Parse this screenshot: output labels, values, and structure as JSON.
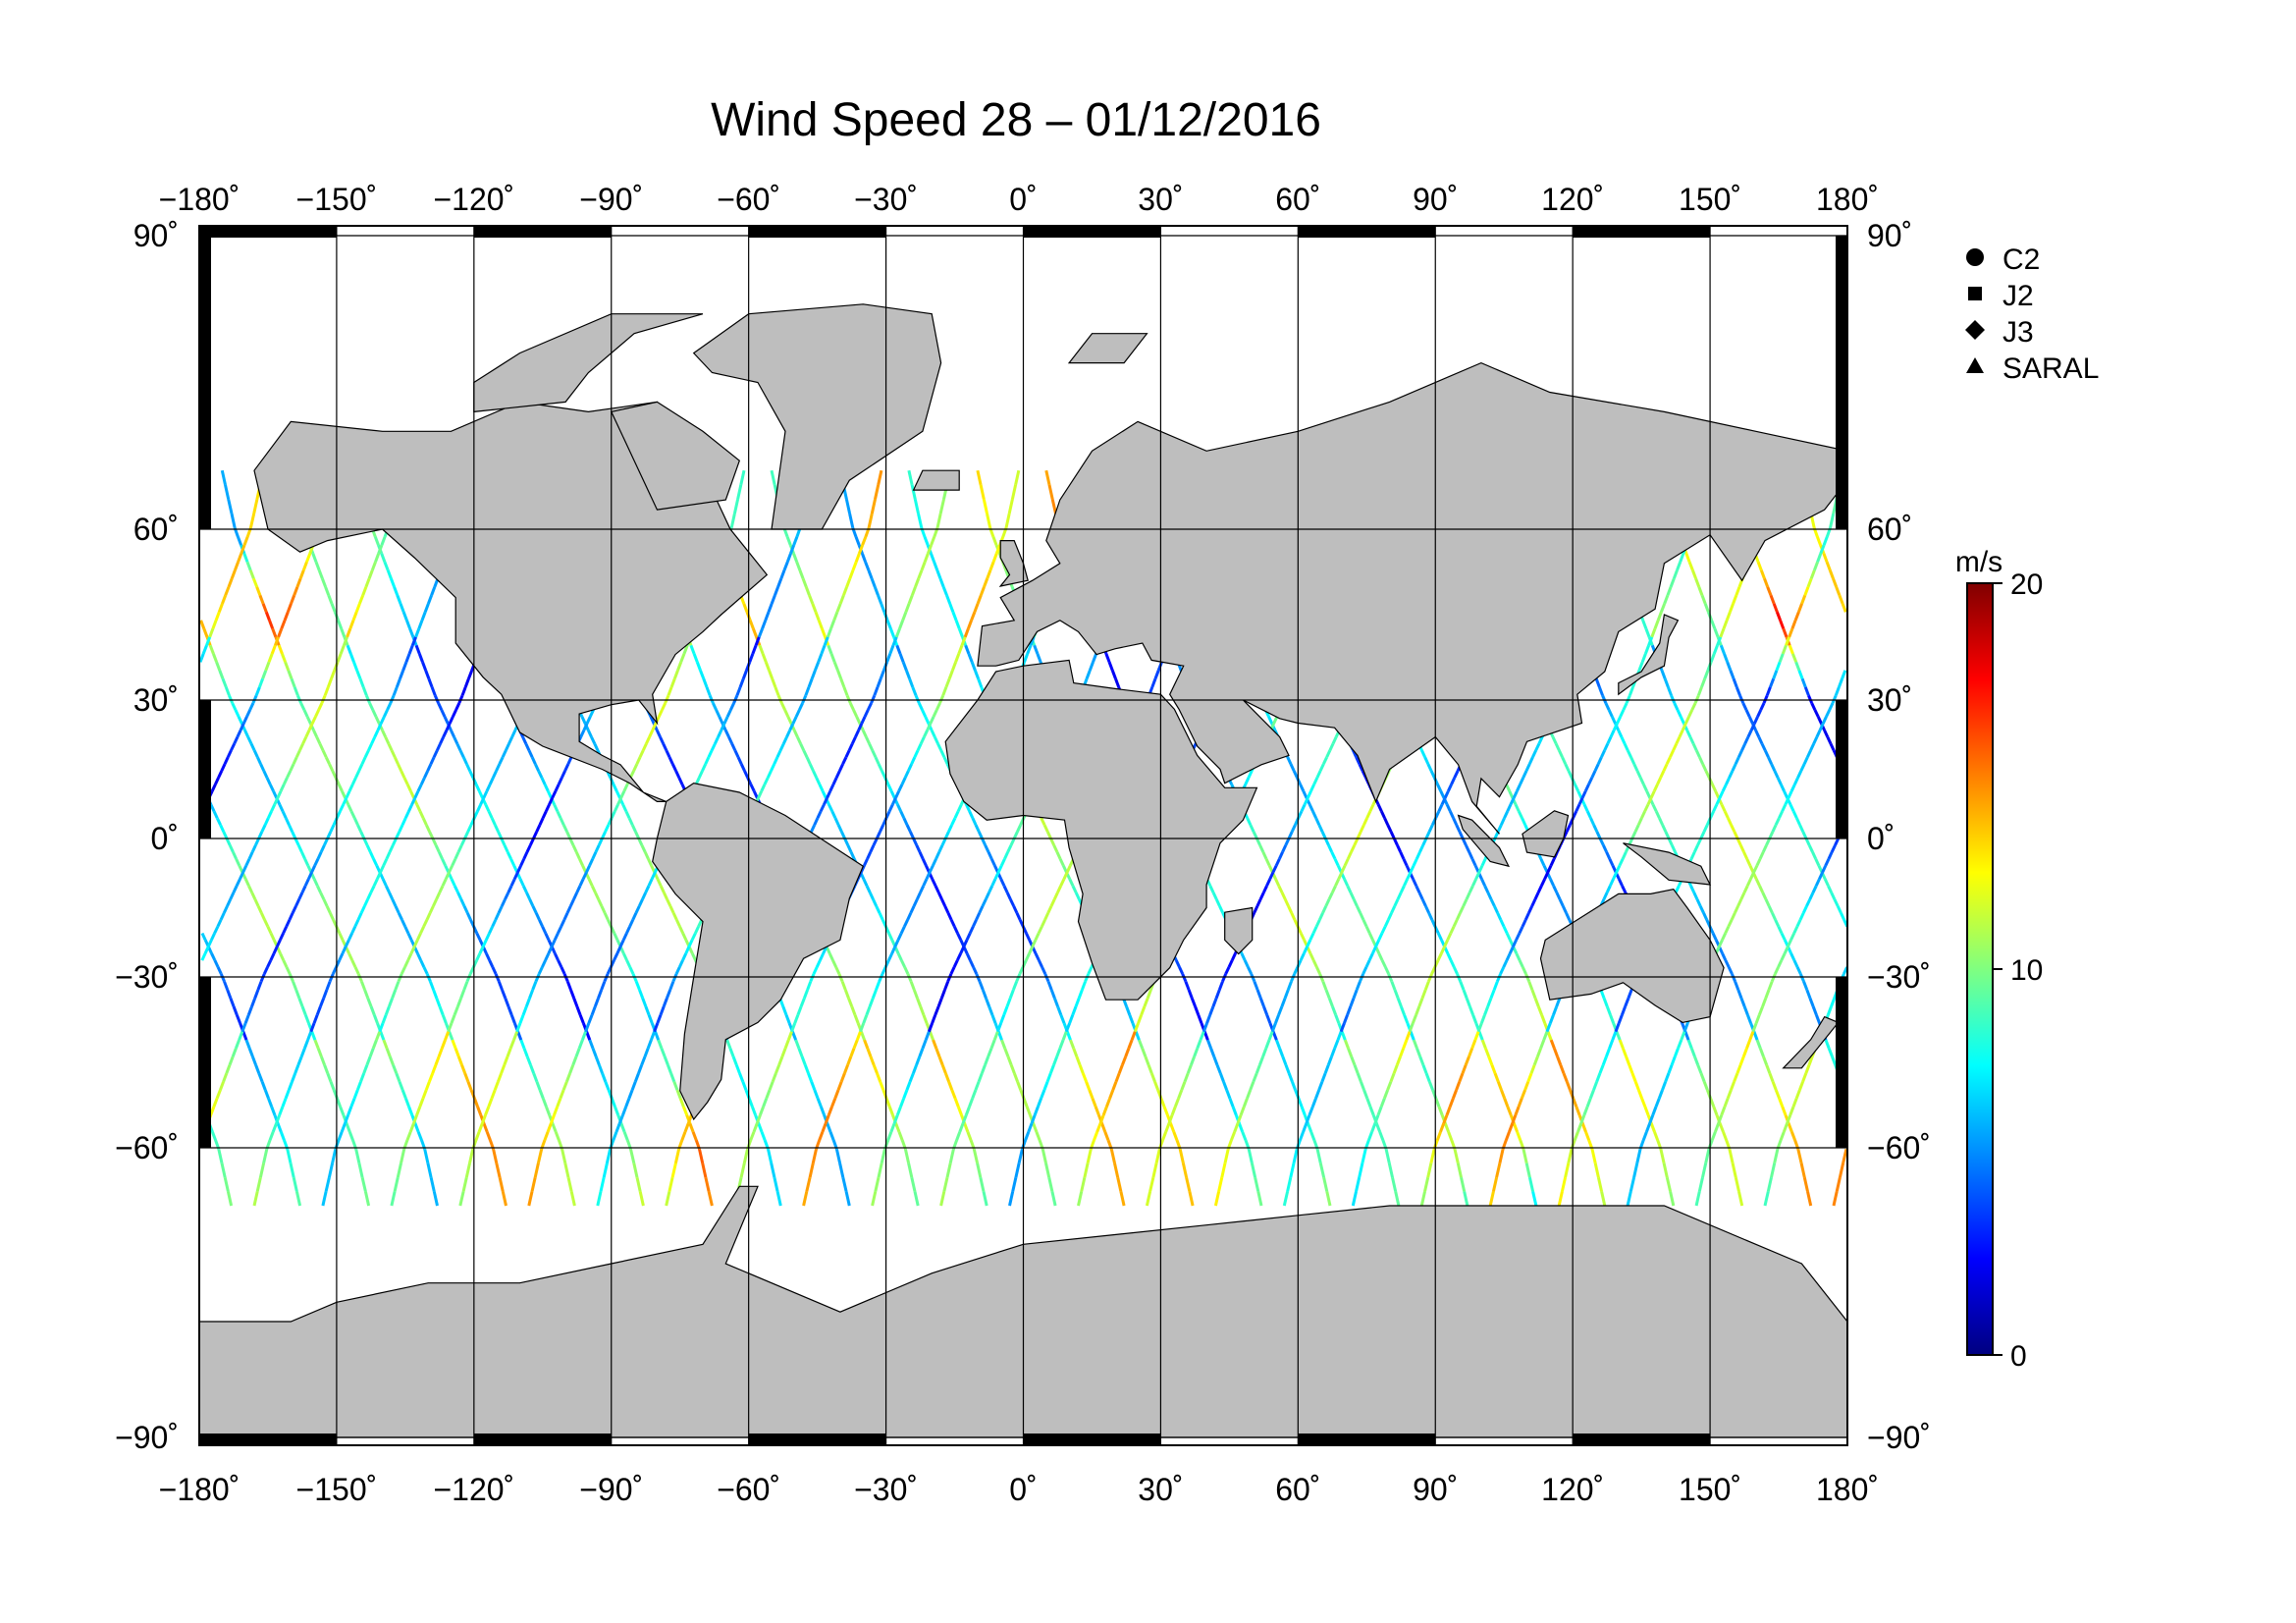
{
  "title": "Wind Speed 28 – 01/12/2016",
  "map": {
    "lon_range": [
      -180,
      180
    ],
    "lat_range": [
      -90,
      90
    ],
    "lon_ticks": [
      -180,
      -150,
      -120,
      -90,
      -60,
      -30,
      0,
      30,
      60,
      90,
      120,
      150,
      180
    ],
    "lat_ticks": [
      90,
      60,
      30,
      0,
      -30,
      -60,
      -90
    ],
    "lon_tick_labels": [
      "−180˚",
      "−150˚",
      "−120˚",
      "−90˚",
      "−60˚",
      "−30˚",
      "0˚",
      "30˚",
      "60˚",
      "90˚",
      "120˚",
      "150˚",
      "180˚"
    ],
    "lat_tick_labels": [
      "90˚",
      "60˚",
      "30˚",
      "0˚",
      "−30˚",
      "−60˚",
      "−90˚"
    ],
    "land_color": "#bebebe",
    "ocean_color": "#ffffff",
    "grid": true
  },
  "legend": {
    "items": [
      {
        "label": "C2",
        "marker": "circle"
      },
      {
        "label": "J2",
        "marker": "square"
      },
      {
        "label": "J3",
        "marker": "diamond"
      },
      {
        "label": "SARAL",
        "marker": "triangle"
      }
    ]
  },
  "colorbar": {
    "unit": "m/s",
    "min": 0,
    "max": 20,
    "tick_labels": [
      "20",
      "10",
      "0"
    ],
    "tick_values": [
      20,
      10,
      0
    ],
    "colors": [
      "#000080",
      "#0000ff",
      "#0080ff",
      "#00ffff",
      "#80ff80",
      "#ffff00",
      "#ff8000",
      "#ff0000",
      "#800000"
    ]
  },
  "chart_data": {
    "type": "map",
    "title": "Wind Speed 28 – 01/12/2016",
    "variable": "wind speed",
    "unit": "m/s",
    "value_range": [
      0,
      20
    ],
    "xlim": [
      -180,
      180
    ],
    "ylim": [
      -90,
      90
    ],
    "series": [
      {
        "name": "C2",
        "marker": "circle"
      },
      {
        "name": "J2",
        "marker": "square"
      },
      {
        "name": "J3",
        "marker": "diamond"
      },
      {
        "name": "SARAL",
        "marker": "triangle"
      }
    ],
    "tracks": {
      "lat_coverage": [
        -66,
        66
      ],
      "descending_start_lons": [
        -175,
        -160,
        -145,
        -130,
        -115,
        -100,
        -85,
        -70,
        -55,
        -40,
        -25,
        -10,
        5,
        20,
        35,
        50,
        65,
        80,
        95,
        110,
        125,
        140,
        155,
        170
      ],
      "ascending_start_lons": [
        -168,
        -153,
        -138,
        -123,
        -108,
        -93,
        -78,
        -63,
        -48,
        -33,
        -18,
        -3,
        12,
        27,
        42,
        57,
        72,
        87,
        102,
        117,
        132,
        147,
        162,
        177
      ],
      "typical_speed": 7,
      "high_wind_regions": [
        {
          "lon": -165,
          "lat": 45,
          "speed": 17
        },
        {
          "lon": 165,
          "lat": 45,
          "speed": 18
        },
        {
          "lon": 100,
          "lat": -55,
          "speed": 17
        },
        {
          "lon": -70,
          "lat": -60,
          "speed": 16
        },
        {
          "lon": 10,
          "lat": 62,
          "speed": 16
        }
      ]
    }
  }
}
